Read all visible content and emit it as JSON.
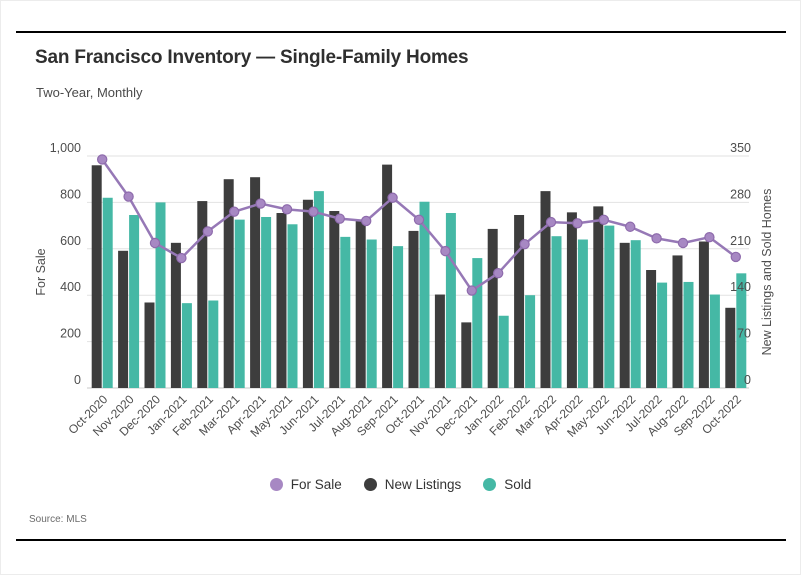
{
  "header": {
    "title": "San Francisco Inventory — Single-Family Homes",
    "subtitle": "Two-Year, Monthly"
  },
  "footer": {
    "source": "Source: MLS"
  },
  "colors": {
    "for_sale_line": "#9678b6",
    "for_sale_dot": "#a788c3",
    "new_listings_bar": "#3d3d3d",
    "sold_bar": "#45b8a5",
    "gridline": "#e2e2e2",
    "baseline": "#c9c9c9",
    "rule": "#000000"
  },
  "legend": [
    {
      "label": "For Sale",
      "color": "#a788c3"
    },
    {
      "label": "New Listings",
      "color": "#3d3d3d"
    },
    {
      "label": "Sold",
      "color": "#45b8a5"
    }
  ],
  "chart_data": {
    "type": "bar+line",
    "title": "San Francisco Inventory — Single-Family Homes",
    "subtitle": "Two-Year, Monthly",
    "categories": [
      "Oct-2020",
      "Nov-2020",
      "Dec-2020",
      "Jan-2021",
      "Feb-2021",
      "Mar-2021",
      "Apr-2021",
      "May-2021",
      "Jun-2021",
      "Jul-2021",
      "Aug-2021",
      "Sep-2021",
      "Oct-2021",
      "Nov-2021",
      "Dec-2021",
      "Jan-2022",
      "Feb-2022",
      "Mar-2022",
      "Apr-2022",
      "May-2022",
      "Jun-2022",
      "Jul-2022",
      "Aug-2022",
      "Sep-2022",
      "Oct-2022"
    ],
    "series": [
      {
        "name": "For Sale",
        "kind": "line",
        "axis": "left",
        "color": "#a788c3",
        "values": [
          985,
          825,
          625,
          560,
          675,
          760,
          795,
          770,
          760,
          730,
          720,
          820,
          725,
          590,
          420,
          495,
          620,
          715,
          710,
          725,
          695,
          645,
          625,
          650,
          565
        ]
      },
      {
        "name": "New Listings",
        "kind": "bar",
        "axis": "right",
        "color": "#3d3d3d",
        "values": [
          336,
          207,
          129,
          219,
          282,
          315,
          318,
          264,
          284,
          267,
          253,
          337,
          237,
          141,
          99,
          240,
          261,
          297,
          265,
          274,
          219,
          178,
          200,
          221,
          121
        ]
      },
      {
        "name": "Sold",
        "kind": "bar",
        "axis": "right",
        "color": "#45b8a5",
        "values": [
          287,
          261,
          280,
          128,
          132,
          254,
          258,
          247,
          297,
          228,
          224,
          214,
          281,
          264,
          196,
          109,
          140,
          229,
          224,
          245,
          223,
          159,
          160,
          141,
          173
        ]
      }
    ],
    "axes": {
      "left": {
        "label": "For Sale",
        "ticks": [
          0,
          200,
          400,
          600,
          800,
          1000
        ],
        "tick_labels": [
          "0",
          "200",
          "400",
          "600",
          "800",
          "1,000"
        ],
        "range": [
          0,
          1000
        ]
      },
      "right": {
        "label": "New Listings and Sold Homes",
        "ticks": [
          0,
          70,
          140,
          210,
          280,
          350
        ],
        "tick_labels": [
          "0",
          "70",
          "140",
          "210",
          "280",
          "350"
        ],
        "range": [
          0,
          350
        ]
      }
    },
    "grid": true,
    "legend_position": "bottom"
  }
}
